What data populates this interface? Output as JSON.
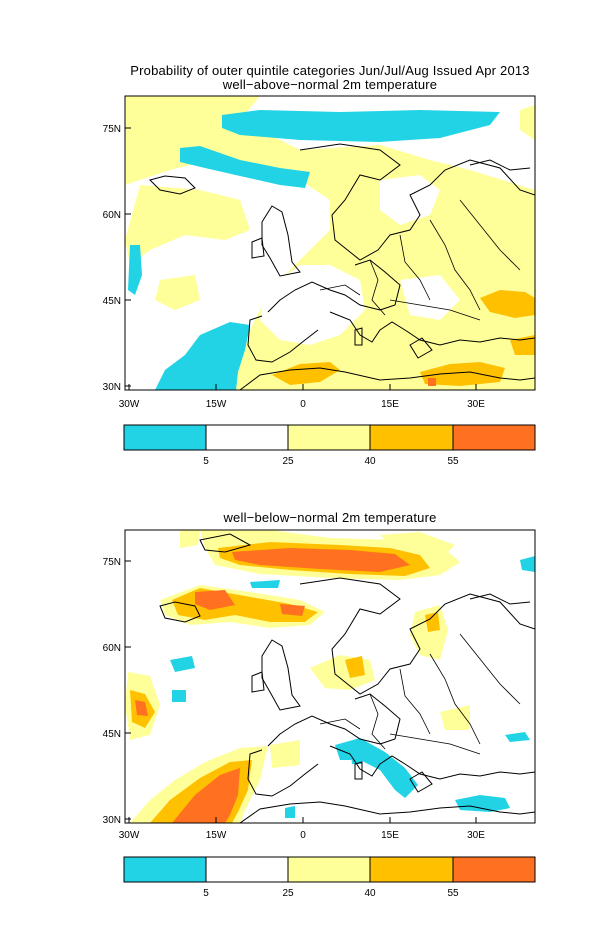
{
  "main_title": "Probability of outer quintile categories Jun/Jul/Aug Issued Apr 2013",
  "panels": [
    {
      "subtitle": "well−above−normal 2m temperature",
      "lat_ticks": [
        "75N",
        "60N",
        "45N",
        "30N"
      ],
      "lon_ticks": [
        "30W",
        "15W",
        "0",
        "15E",
        "30E"
      ],
      "colorbar_ticks": [
        "5",
        "25",
        "40",
        "55"
      ]
    },
    {
      "subtitle": "well−below−normal 2m temperature",
      "lat_ticks": [
        "75N",
        "60N",
        "45N",
        "30N"
      ],
      "lon_ticks": [
        "30W",
        "15W",
        "0",
        "15E",
        "30E"
      ],
      "colorbar_ticks": [
        "5",
        "25",
        "40",
        "55"
      ]
    }
  ],
  "colors": {
    "below_5": "#22d3e6",
    "5_25": "#ffffff",
    "25_40": "#ffff99",
    "40_55": "#ffc000",
    "above_55": "#ff7020"
  }
}
